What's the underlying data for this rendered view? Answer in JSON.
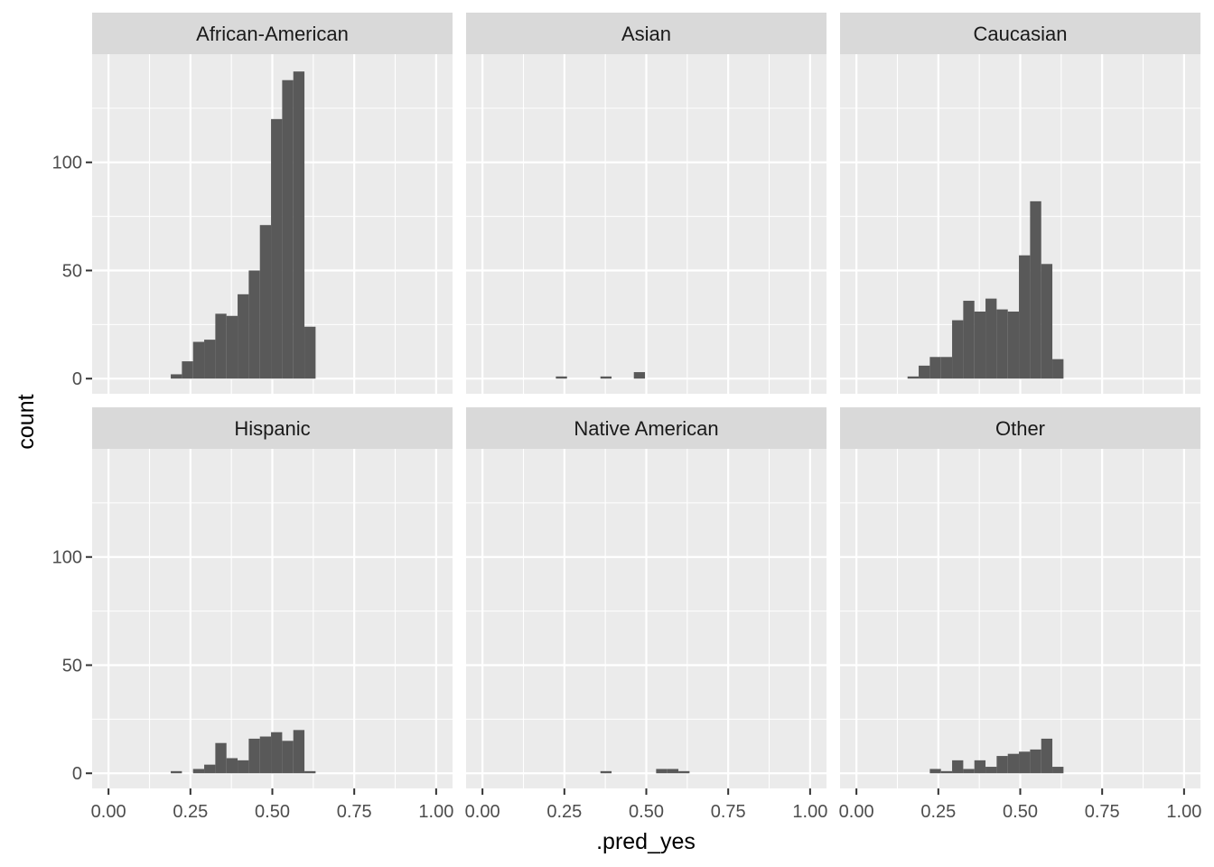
{
  "chart_data": {
    "type": "bar",
    "subtype": "faceted-histogram",
    "xlabel": ".pred_yes",
    "ylabel": "count",
    "xlim": [
      -0.05,
      1.05
    ],
    "ylim": [
      -7,
      150
    ],
    "x_ticks": [
      0,
      0.25,
      0.5,
      0.75,
      1
    ],
    "x_tick_labels": [
      "0.00",
      "0.25",
      "0.50",
      "0.75",
      "1.00"
    ],
    "y_ticks": [
      0,
      50,
      100
    ],
    "y_tick_labels": [
      "0",
      "50",
      "100"
    ],
    "bin_width": 0.034,
    "grid": true,
    "colors": {
      "bar": "#595959",
      "panel": "#ebebeb",
      "strip": "#d9d9d9",
      "grid": "#ffffff"
    },
    "facets": [
      {
        "name": "African-American",
        "bins": [
          {
            "x": 0.207,
            "y": 2
          },
          {
            "x": 0.241,
            "y": 8
          },
          {
            "x": 0.275,
            "y": 17
          },
          {
            "x": 0.309,
            "y": 18
          },
          {
            "x": 0.343,
            "y": 30
          },
          {
            "x": 0.377,
            "y": 29
          },
          {
            "x": 0.411,
            "y": 39
          },
          {
            "x": 0.445,
            "y": 50
          },
          {
            "x": 0.479,
            "y": 71
          },
          {
            "x": 0.513,
            "y": 120
          },
          {
            "x": 0.547,
            "y": 138
          },
          {
            "x": 0.581,
            "y": 142
          },
          {
            "x": 0.615,
            "y": 24
          }
        ]
      },
      {
        "name": "Asian",
        "bins": [
          {
            "x": 0.241,
            "y": 1
          },
          {
            "x": 0.377,
            "y": 1
          },
          {
            "x": 0.479,
            "y": 3
          }
        ]
      },
      {
        "name": "Caucasian",
        "bins": [
          {
            "x": 0.173,
            "y": 1
          },
          {
            "x": 0.207,
            "y": 6
          },
          {
            "x": 0.241,
            "y": 10
          },
          {
            "x": 0.275,
            "y": 10
          },
          {
            "x": 0.309,
            "y": 27
          },
          {
            "x": 0.343,
            "y": 36
          },
          {
            "x": 0.377,
            "y": 31
          },
          {
            "x": 0.411,
            "y": 37
          },
          {
            "x": 0.445,
            "y": 32
          },
          {
            "x": 0.479,
            "y": 31
          },
          {
            "x": 0.513,
            "y": 57
          },
          {
            "x": 0.547,
            "y": 82
          },
          {
            "x": 0.581,
            "y": 53
          },
          {
            "x": 0.615,
            "y": 9
          }
        ]
      },
      {
        "name": "Hispanic",
        "bins": [
          {
            "x": 0.207,
            "y": 1
          },
          {
            "x": 0.275,
            "y": 2
          },
          {
            "x": 0.309,
            "y": 4
          },
          {
            "x": 0.343,
            "y": 14
          },
          {
            "x": 0.377,
            "y": 7
          },
          {
            "x": 0.411,
            "y": 6
          },
          {
            "x": 0.445,
            "y": 16
          },
          {
            "x": 0.479,
            "y": 17
          },
          {
            "x": 0.513,
            "y": 19
          },
          {
            "x": 0.547,
            "y": 15
          },
          {
            "x": 0.581,
            "y": 20
          },
          {
            "x": 0.615,
            "y": 1
          }
        ]
      },
      {
        "name": "Native American",
        "bins": [
          {
            "x": 0.377,
            "y": 1
          },
          {
            "x": 0.547,
            "y": 2
          },
          {
            "x": 0.581,
            "y": 2
          },
          {
            "x": 0.615,
            "y": 1
          }
        ]
      },
      {
        "name": "Other",
        "bins": [
          {
            "x": 0.241,
            "y": 2
          },
          {
            "x": 0.275,
            "y": 1
          },
          {
            "x": 0.309,
            "y": 6
          },
          {
            "x": 0.343,
            "y": 2
          },
          {
            "x": 0.377,
            "y": 6
          },
          {
            "x": 0.411,
            "y": 3
          },
          {
            "x": 0.445,
            "y": 8
          },
          {
            "x": 0.479,
            "y": 9
          },
          {
            "x": 0.513,
            "y": 10
          },
          {
            "x": 0.547,
            "y": 11
          },
          {
            "x": 0.581,
            "y": 16
          },
          {
            "x": 0.615,
            "y": 3
          }
        ]
      }
    ]
  }
}
